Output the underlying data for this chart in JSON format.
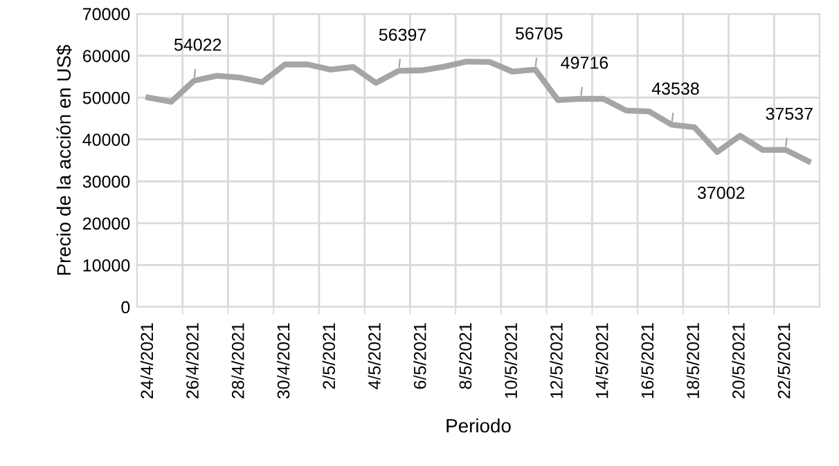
{
  "chart_data": {
    "type": "line",
    "xlabel": "Periodo",
    "ylabel": "Precio de la acción en US$",
    "categories": [
      "24/4/2021",
      null,
      "26/4/2021",
      null,
      "28/4/2021",
      null,
      "30/4/2021",
      null,
      "2/5/2021",
      null,
      "4/5/2021",
      null,
      "6/5/2021",
      null,
      "8/5/2021",
      null,
      "10/5/2021",
      null,
      "12/5/2021",
      null,
      "14/5/2021",
      null,
      "16/5/2021",
      null,
      "18/5/2021",
      null,
      "20/5/2021",
      null,
      "22/5/2021",
      null
    ],
    "series": [
      {
        "color": "#a5a5a5",
        "values": [
          50000,
          49000,
          54022,
          55200,
          54800,
          53700,
          57900,
          57900,
          56700,
          57300,
          53500,
          56397,
          56500,
          57400,
          58600,
          58500,
          56200,
          56705,
          49400,
          49716,
          49700,
          46900,
          46700,
          43538,
          42900,
          37002,
          40900,
          37500,
          37537,
          34800
        ],
        "value_labels": [
          null,
          null,
          "54022",
          null,
          null,
          null,
          null,
          null,
          null,
          null,
          null,
          "56397",
          null,
          null,
          null,
          null,
          null,
          "56705",
          null,
          "49716",
          null,
          null,
          null,
          "43538",
          null,
          "37002",
          null,
          null,
          "37537",
          null
        ]
      }
    ],
    "ylim": [
      0,
      70000
    ],
    "yticks": [
      0,
      10000,
      20000,
      30000,
      40000,
      50000,
      60000,
      70000
    ],
    "grid": true,
    "legend": false,
    "marker": "none",
    "line_style": "solid"
  }
}
